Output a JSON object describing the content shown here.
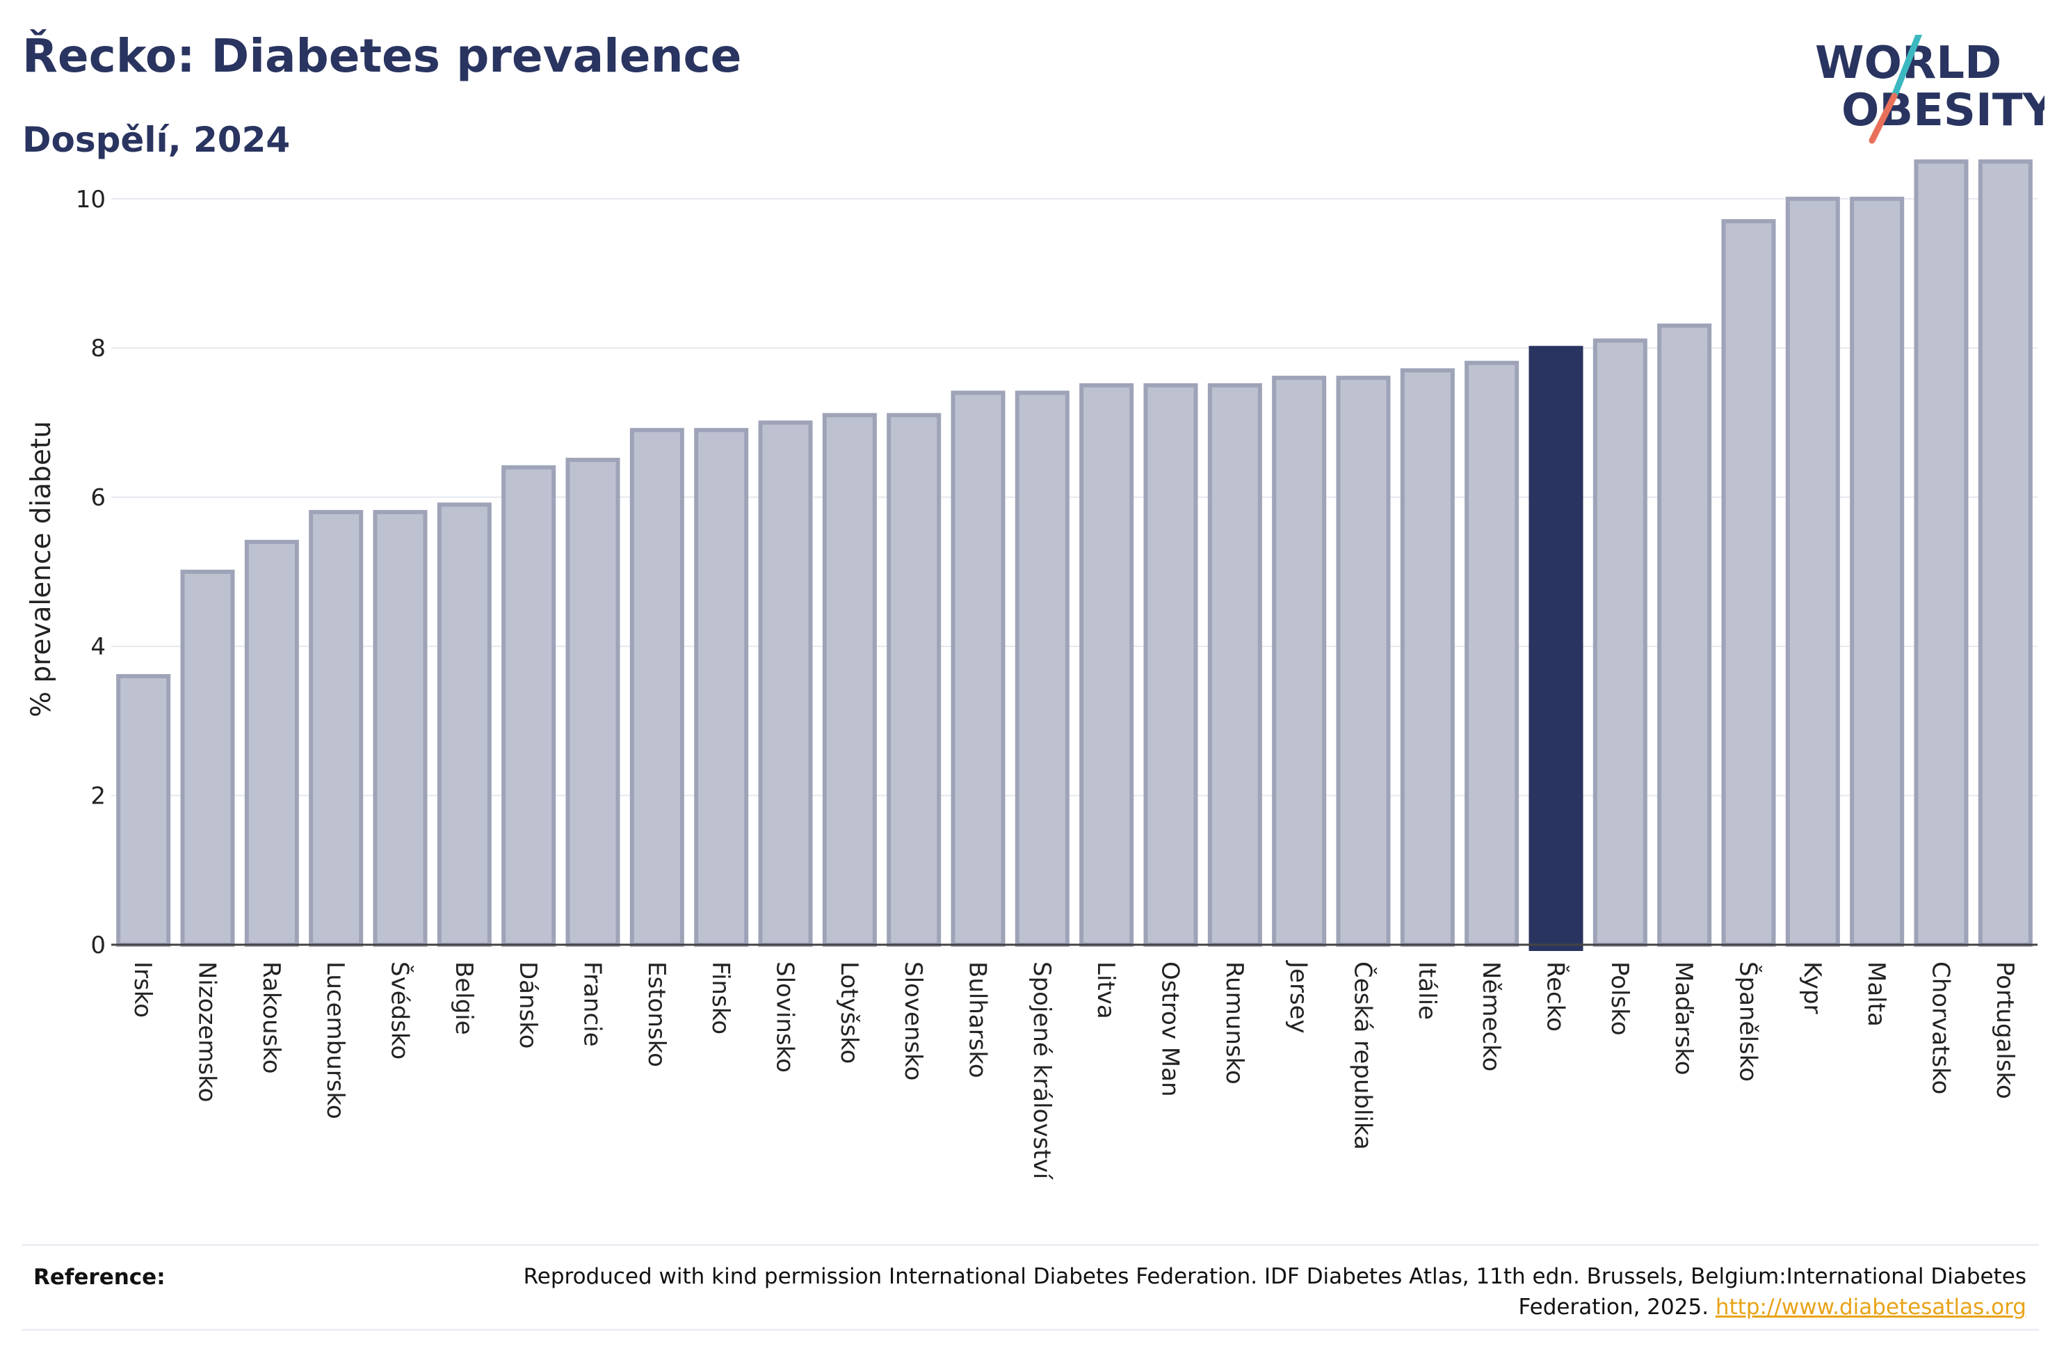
{
  "header": {
    "title": "Řecko: Diabetes prevalence",
    "subtitle": "Dospělí, 2024"
  },
  "logo": {
    "line1": "WORLD",
    "line2": "OBESITY",
    "colors": {
      "text": "#2a3460",
      "slash_top": "#3bb8c0",
      "slash_bottom": "#e8705a"
    }
  },
  "chart_data": {
    "type": "bar",
    "ylabel": "% prevalence diabetu",
    "xlabel": "",
    "ylim": [
      0,
      10.8
    ],
    "yticks": [
      0,
      2,
      4,
      6,
      8,
      10
    ],
    "grid": true,
    "highlight": "Řecko",
    "colors": {
      "bar": "#bec2d0",
      "bar_border": "#9ea3b8",
      "highlight": "#2a3460"
    },
    "categories": [
      "Irsko",
      "Nizozemsko",
      "Rakousko",
      "Lucembursko",
      "Švédsko",
      "Belgie",
      "Dánsko",
      "Francie",
      "Estonsko",
      "Finsko",
      "Slovinsko",
      "Lotyšsko",
      "Slovensko",
      "Bulharsko",
      "Spojené království",
      "Litva",
      "Ostrov Man",
      "Rumunsko",
      "Jersey",
      "Česká republika",
      "Itálie",
      "Německo",
      "Řecko",
      "Polsko",
      "Maďarsko",
      "Španělsko",
      "Kypr",
      "Malta",
      "Chorvatsko",
      "Portugalsko"
    ],
    "values": [
      3.6,
      5.0,
      5.4,
      5.8,
      5.8,
      5.9,
      6.4,
      6.5,
      6.9,
      6.9,
      7.0,
      7.1,
      7.1,
      7.4,
      7.4,
      7.5,
      7.5,
      7.5,
      7.6,
      7.6,
      7.7,
      7.8,
      8.0,
      8.1,
      8.3,
      9.7,
      10.0,
      10.0,
      10.5,
      10.5
    ]
  },
  "footer": {
    "reference_label": "Reference:",
    "reference_text": "Reproduced with kind permission International Diabetes Federation. IDF Diabetes Atlas, 11th edn. Brussels, Belgium:International Diabetes Federation, 2025.",
    "reference_link": "http://www.diabetesatlas.org"
  }
}
